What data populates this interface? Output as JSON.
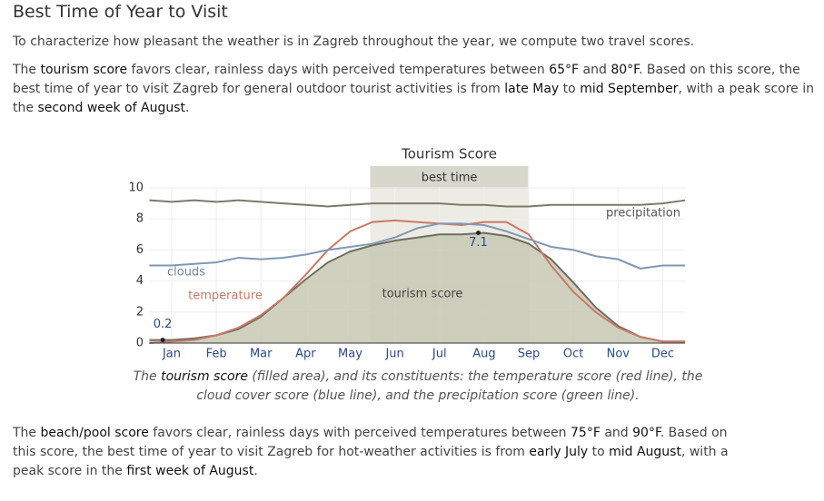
{
  "header": {
    "title": "Best Time of Year to Visit"
  },
  "intro": {
    "text": "To characterize how pleasant the weather is in Zagreb throughout the year, we compute two travel scores."
  },
  "tourism_paragraph": {
    "segments": [
      {
        "text": "The ",
        "emphasis": false
      },
      {
        "text": "tourism score",
        "emphasis": true
      },
      {
        "text": " favors clear, rainless days with perceived temperatures between ",
        "emphasis": false
      },
      {
        "text": "65°F",
        "emphasis": true
      },
      {
        "text": " and ",
        "emphasis": false
      },
      {
        "text": "80°F",
        "emphasis": true
      },
      {
        "text": ". Based on this score, the best time of year to visit Zagreb for general outdoor tourist activities is from ",
        "emphasis": false
      },
      {
        "text": "late May",
        "emphasis": true
      },
      {
        "text": " to ",
        "emphasis": false
      },
      {
        "text": "mid September",
        "emphasis": true
      },
      {
        "text": ", with a peak score in the ",
        "emphasis": false
      },
      {
        "text": "second week of August",
        "emphasis": true
      },
      {
        "text": ".",
        "emphasis": false
      }
    ]
  },
  "chart_data": {
    "type": "line",
    "title": "Tourism Score",
    "x": [
      0,
      0.5,
      1,
      1.5,
      2,
      2.5,
      3,
      3.5,
      4,
      4.5,
      5,
      5.5,
      6,
      6.5,
      7,
      7.5,
      8,
      8.5,
      9,
      9.5,
      10,
      10.5,
      11,
      11.5,
      12
    ],
    "xlim": [
      0,
      12
    ],
    "ylim": [
      0,
      10
    ],
    "yticks": [
      0,
      2,
      4,
      6,
      8,
      10
    ],
    "grid": true,
    "xticks": [
      {
        "value": 0.5,
        "label": "Jan"
      },
      {
        "value": 1.5,
        "label": "Feb"
      },
      {
        "value": 2.5,
        "label": "Mar"
      },
      {
        "value": 3.5,
        "label": "Apr"
      },
      {
        "value": 4.5,
        "label": "May"
      },
      {
        "value": 5.5,
        "label": "Jun"
      },
      {
        "value": 6.5,
        "label": "Jul"
      },
      {
        "value": 7.5,
        "label": "Aug"
      },
      {
        "value": 8.5,
        "label": "Sep"
      },
      {
        "value": 9.5,
        "label": "Oct"
      },
      {
        "value": 10.5,
        "label": "Nov"
      },
      {
        "value": 11.5,
        "label": "Dec"
      }
    ],
    "best_time": {
      "label": "best time",
      "xlim": [
        4.95,
        8.49
      ]
    },
    "series": [
      {
        "name": "tourism score",
        "color": "#6e6e5e",
        "fill": "#c8c8b4",
        "values": [
          0.2,
          0.2,
          0.3,
          0.5,
          0.9,
          1.7,
          2.9,
          4.1,
          5.2,
          5.9,
          6.3,
          6.6,
          6.8,
          7.0,
          7.0,
          7.1,
          6.9,
          6.4,
          5.4,
          3.9,
          2.3,
          1.1,
          0.4,
          0.1,
          0.1
        ]
      },
      {
        "name": "temperature",
        "color": "#c87a68",
        "values": [
          0,
          0.1,
          0.2,
          0.5,
          1.0,
          1.8,
          2.9,
          4.4,
          6.0,
          7.2,
          7.8,
          7.9,
          7.8,
          7.7,
          7.6,
          7.8,
          7.8,
          7.0,
          5.0,
          3.3,
          2.0,
          1.0,
          0.4,
          0.1,
          0.1
        ]
      },
      {
        "name": "clouds",
        "color": "#7f99b5",
        "values": [
          5.0,
          5.0,
          5.1,
          5.2,
          5.5,
          5.4,
          5.5,
          5.7,
          6.0,
          6.2,
          6.4,
          6.8,
          7.4,
          7.7,
          7.7,
          7.6,
          7.2,
          6.7,
          6.2,
          6.0,
          5.6,
          5.4,
          4.8,
          5.0,
          5.0
        ]
      },
      {
        "name": "precipitation",
        "color": "#7a7a6a",
        "values": [
          9.2,
          9.1,
          9.2,
          9.1,
          9.2,
          9.1,
          9.0,
          8.9,
          8.8,
          8.9,
          9.0,
          9.0,
          9.0,
          9.0,
          8.9,
          8.9,
          8.8,
          8.8,
          8.9,
          8.9,
          8.9,
          8.9,
          8.9,
          9.0,
          9.2
        ]
      }
    ],
    "points": [
      {
        "x": 0.3,
        "value": 0.2
      },
      {
        "x": 7.37,
        "value": 7.1
      }
    ]
  },
  "caption": {
    "segments": [
      {
        "text": "The ",
        "emphasis": false
      },
      {
        "text": "tourism score",
        "emphasis": true
      },
      {
        "text": " (filled area), and its constituents: the temperature score (red line), the cloud cover score (blue line), and the precipitation score (green line).",
        "emphasis": false
      }
    ]
  },
  "beach_paragraph": {
    "segments": [
      {
        "text": "The ",
        "emphasis": false
      },
      {
        "text": "beach/pool score",
        "emphasis": true
      },
      {
        "text": " favors clear, rainless days with perceived temperatures between ",
        "emphasis": false
      },
      {
        "text": "75°F",
        "emphasis": true
      },
      {
        "text": " and ",
        "emphasis": false
      },
      {
        "text": "90°F",
        "emphasis": true
      },
      {
        "text": ". Based on this score, the best time of year to visit Zagreb for hot-weather activities is from ",
        "emphasis": false
      },
      {
        "text": "early July",
        "emphasis": true
      },
      {
        "text": " to ",
        "emphasis": false
      },
      {
        "text": "mid August",
        "emphasis": true
      },
      {
        "text": ", with a peak score in the ",
        "emphasis": false
      },
      {
        "text": "first week of August",
        "emphasis": true
      },
      {
        "text": ".",
        "emphasis": false
      }
    ]
  }
}
